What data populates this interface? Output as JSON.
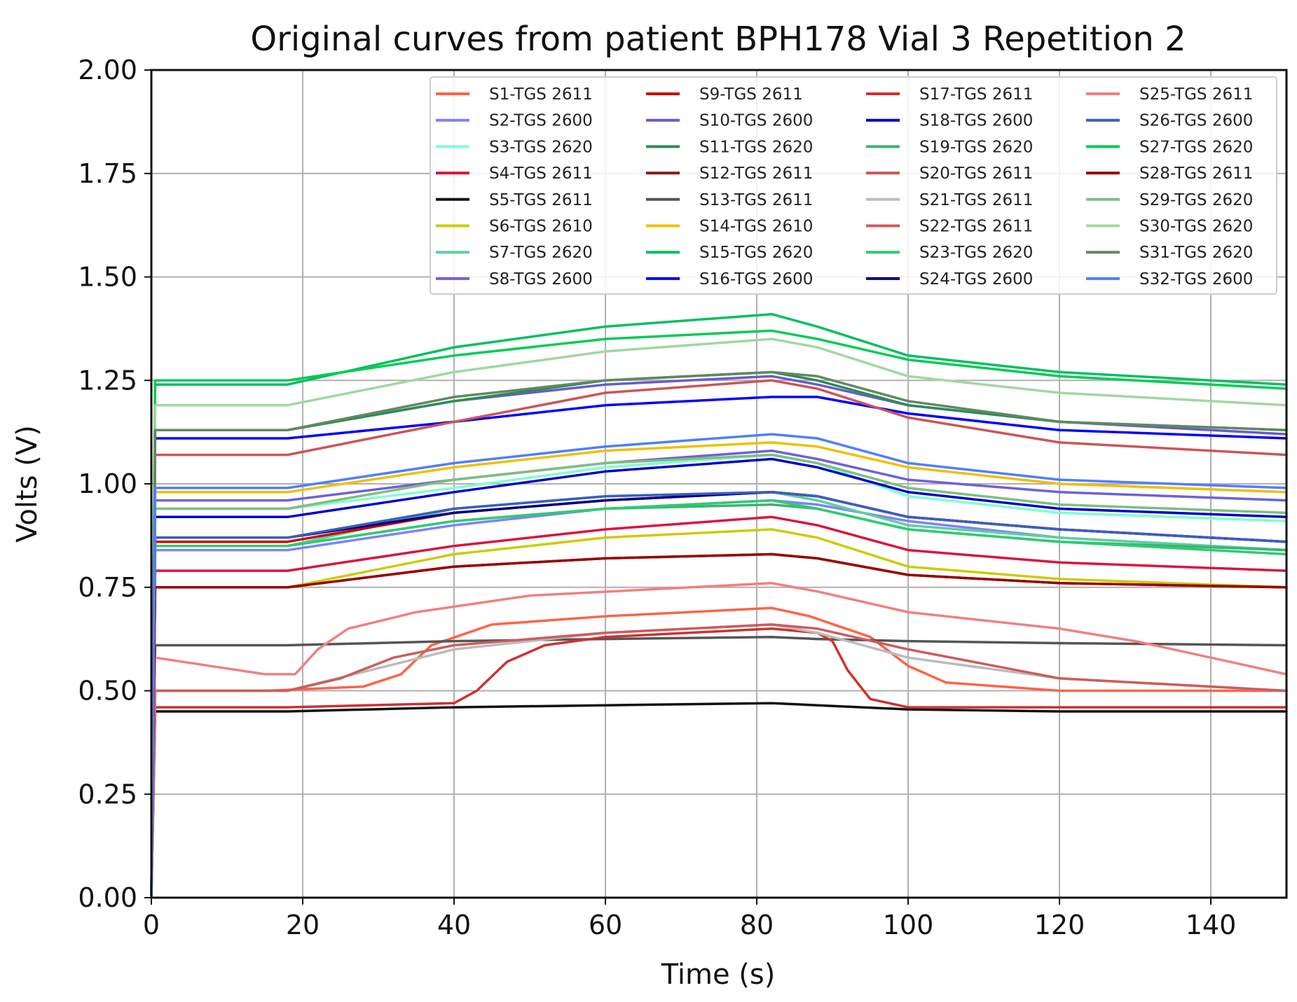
{
  "chart_data": {
    "type": "line",
    "title": "Original curves from patient BPH178 Vial 3 Repetition 2",
    "xlabel": "Time (s)",
    "ylabel": "Volts (V)",
    "xlim": [
      0,
      150
    ],
    "ylim": [
      0,
      2
    ],
    "grid": true,
    "legend_position": "top-right",
    "xticks": [
      0,
      20,
      40,
      60,
      80,
      100,
      120,
      140
    ],
    "xtick_labels": [
      "0",
      "20",
      "40",
      "60",
      "80",
      "100",
      "120",
      "140"
    ],
    "yticks": [
      0,
      0.25,
      0.5,
      0.75,
      1.0,
      1.25,
      1.5,
      1.75,
      2.0
    ],
    "ytick_labels": [
      "0.00",
      "0.25",
      "0.50",
      "0.75",
      "1.00",
      "1.25",
      "1.50",
      "1.75",
      "2.00"
    ],
    "series": [
      {
        "name": "S1-TGS 2611",
        "color": "#ff6347",
        "x": [
          0.5,
          15,
          28,
          33,
          37,
          45,
          60,
          82,
          87,
          95,
          100,
          105,
          120,
          150
        ],
        "y": [
          0.5,
          0.5,
          0.51,
          0.54,
          0.61,
          0.66,
          0.68,
          0.7,
          0.68,
          0.63,
          0.56,
          0.52,
          0.5,
          0.5
        ]
      },
      {
        "name": "S2-TGS 2600",
        "color": "#8080ff",
        "x": [
          0.5,
          18,
          40,
          60,
          82,
          88,
          100,
          120,
          150
        ],
        "y": [
          0.84,
          0.84,
          0.9,
          0.94,
          0.96,
          0.95,
          0.91,
          0.87,
          0.84
        ]
      },
      {
        "name": "S3-TGS 2620",
        "color": "#7fffd4",
        "x": [
          0.5,
          18,
          40,
          60,
          82,
          88,
          100,
          120,
          150
        ],
        "y": [
          0.94,
          0.94,
          0.99,
          1.04,
          1.07,
          1.05,
          0.97,
          0.93,
          0.91
        ]
      },
      {
        "name": "S4-TGS 2611",
        "color": "#dc143c",
        "x": [
          0.5,
          18,
          40,
          60,
          82,
          88,
          100,
          120,
          150
        ],
        "y": [
          0.79,
          0.79,
          0.85,
          0.89,
          0.92,
          0.9,
          0.84,
          0.81,
          0.79
        ]
      },
      {
        "name": "S5-TGS 2611",
        "color": "#111111",
        "x": [
          0.5,
          18,
          40,
          60,
          82,
          88,
          100,
          120,
          150
        ],
        "y": [
          0.45,
          0.45,
          0.46,
          0.465,
          0.47,
          0.465,
          0.455,
          0.45,
          0.45
        ]
      },
      {
        "name": "S6-TGS 2610",
        "color": "#cccc00",
        "x": [
          0.5,
          18,
          40,
          60,
          82,
          88,
          100,
          120,
          150
        ],
        "y": [
          0.75,
          0.75,
          0.83,
          0.87,
          0.89,
          0.87,
          0.8,
          0.77,
          0.75
        ]
      },
      {
        "name": "S7-TGS 2620",
        "color": "#5fcfa0",
        "x": [
          0.5,
          18,
          40,
          60,
          82,
          88,
          100,
          120,
          150
        ],
        "y": [
          0.85,
          0.85,
          0.94,
          0.97,
          0.98,
          0.96,
          0.9,
          0.87,
          0.84
        ]
      },
      {
        "name": "S8-TGS 2600",
        "color": "#7060d8",
        "x": [
          0.5,
          18,
          40,
          60,
          82,
          88,
          100,
          120,
          150
        ],
        "y": [
          0.96,
          0.96,
          1.01,
          1.05,
          1.08,
          1.06,
          1.01,
          0.98,
          0.96
        ]
      },
      {
        "name": "S9-TGS 2611",
        "color": "#cc0000",
        "x": [
          0.5,
          18,
          40,
          60,
          82,
          88,
          100,
          120,
          150
        ],
        "y": [
          0.86,
          0.86,
          0.93,
          0.96,
          0.98,
          0.97,
          0.92,
          0.89,
          0.86
        ]
      },
      {
        "name": "S10-TGS 2600",
        "color": "#6a5acd",
        "x": [
          0.5,
          18,
          40,
          60,
          82,
          88,
          100,
          120,
          150
        ],
        "y": [
          1.13,
          1.13,
          1.2,
          1.24,
          1.26,
          1.24,
          1.19,
          1.15,
          1.12
        ]
      },
      {
        "name": "S11-TGS 2620",
        "color": "#2e8b57",
        "x": [
          0.5,
          18,
          40,
          60,
          82,
          88,
          100,
          120,
          150
        ],
        "y": [
          1.13,
          1.13,
          1.2,
          1.25,
          1.27,
          1.25,
          1.19,
          1.15,
          1.13
        ]
      },
      {
        "name": "S12-TGS 2611",
        "color": "#8b1a1a",
        "x": [
          0.5,
          18,
          40,
          60,
          82,
          88,
          100,
          120,
          150
        ],
        "y": [
          0.75,
          0.75,
          0.8,
          0.82,
          0.83,
          0.82,
          0.78,
          0.76,
          0.75
        ]
      },
      {
        "name": "S13-TGS 2611",
        "color": "#555555",
        "x": [
          0.5,
          18,
          40,
          60,
          82,
          88,
          100,
          120,
          150
        ],
        "y": [
          0.61,
          0.61,
          0.62,
          0.625,
          0.63,
          0.625,
          0.62,
          0.615,
          0.61
        ]
      },
      {
        "name": "S14-TGS 2610",
        "color": "#f0c000",
        "x": [
          0.5,
          18,
          40,
          60,
          82,
          88,
          100,
          120,
          150
        ],
        "y": [
          0.98,
          0.98,
          1.04,
          1.08,
          1.1,
          1.09,
          1.04,
          1.0,
          0.98
        ]
      },
      {
        "name": "S15-TGS 2620",
        "color": "#00c060",
        "x": [
          0.5,
          18,
          40,
          60,
          82,
          88,
          100,
          120,
          150
        ],
        "y": [
          1.24,
          1.24,
          1.33,
          1.38,
          1.41,
          1.38,
          1.31,
          1.27,
          1.24
        ]
      },
      {
        "name": "S16-TGS 2600",
        "color": "#0000ff",
        "x": [
          0.5,
          18,
          40,
          60,
          82,
          88,
          100,
          120,
          150
        ],
        "y": [
          1.11,
          1.11,
          1.15,
          1.19,
          1.21,
          1.21,
          1.17,
          1.13,
          1.11
        ]
      },
      {
        "name": "S17-TGS 2611",
        "color": "#d03030",
        "x": [
          0.5,
          18,
          40,
          43,
          47,
          52,
          60,
          82,
          88,
          90,
          92,
          95,
          100,
          150
        ],
        "y": [
          0.46,
          0.46,
          0.47,
          0.5,
          0.57,
          0.61,
          0.63,
          0.65,
          0.64,
          0.62,
          0.55,
          0.48,
          0.46,
          0.46
        ]
      },
      {
        "name": "S18-TGS 2600",
        "color": "#0000cc",
        "x": [
          0.5,
          18,
          40,
          60,
          82,
          88,
          100,
          120,
          150
        ],
        "y": [
          0.92,
          0.92,
          0.98,
          1.03,
          1.06,
          1.04,
          0.98,
          0.94,
          0.92
        ]
      },
      {
        "name": "S19-TGS 2620",
        "color": "#3cb371",
        "x": [
          0.5,
          18,
          40,
          60,
          82,
          88,
          100,
          120,
          150
        ],
        "y": [
          0.85,
          0.85,
          0.91,
          0.94,
          0.95,
          0.94,
          0.89,
          0.86,
          0.84
        ]
      },
      {
        "name": "S20-TGS 2611",
        "color": "#cd5555",
        "x": [
          0.5,
          18,
          40,
          60,
          82,
          88,
          100,
          120,
          150
        ],
        "y": [
          1.07,
          1.07,
          1.15,
          1.22,
          1.25,
          1.23,
          1.16,
          1.1,
          1.07
        ]
      },
      {
        "name": "S21-TGS 2611",
        "color": "#bbbbbb",
        "x": [
          0.5,
          18,
          40,
          60,
          82,
          88,
          100,
          120,
          150
        ],
        "y": [
          0.5,
          0.5,
          0.6,
          0.64,
          0.66,
          0.64,
          0.58,
          0.53,
          0.5
        ]
      },
      {
        "name": "S22-TGS 2611",
        "color": "#cd5c5c",
        "x": [
          0.5,
          18,
          25,
          32,
          40,
          60,
          82,
          88,
          100,
          120,
          150
        ],
        "y": [
          0.5,
          0.5,
          0.53,
          0.58,
          0.61,
          0.64,
          0.66,
          0.65,
          0.6,
          0.53,
          0.5
        ]
      },
      {
        "name": "S23-TGS 2620",
        "color": "#2ecc71",
        "x": [
          0.5,
          18,
          40,
          60,
          82,
          88,
          100,
          120,
          150
        ],
        "y": [
          0.85,
          0.85,
          0.91,
          0.94,
          0.96,
          0.94,
          0.89,
          0.86,
          0.83
        ]
      },
      {
        "name": "S24-TGS 2600",
        "color": "#000080",
        "x": [
          0.5,
          18,
          40,
          60,
          82,
          88,
          100,
          120,
          150
        ],
        "y": [
          0.87,
          0.87,
          0.93,
          0.96,
          0.98,
          0.97,
          0.92,
          0.89,
          0.86
        ]
      },
      {
        "name": "S25-TGS 2611",
        "color": "#f08080",
        "x": [
          0.5,
          15,
          19,
          22,
          26,
          35,
          50,
          82,
          88,
          100,
          120,
          130,
          140,
          150
        ],
        "y": [
          0.58,
          0.54,
          0.54,
          0.6,
          0.65,
          0.69,
          0.73,
          0.76,
          0.74,
          0.69,
          0.65,
          0.62,
          0.58,
          0.54
        ]
      },
      {
        "name": "S26-TGS 2600",
        "color": "#3a5fbf",
        "x": [
          0.5,
          18,
          40,
          60,
          82,
          88,
          100,
          120,
          150
        ],
        "y": [
          0.87,
          0.87,
          0.94,
          0.97,
          0.98,
          0.97,
          0.92,
          0.89,
          0.86
        ]
      },
      {
        "name": "S27-TGS 2620",
        "color": "#00cc55",
        "x": [
          0.5,
          18,
          40,
          60,
          82,
          88,
          100,
          120,
          150
        ],
        "y": [
          1.25,
          1.25,
          1.31,
          1.35,
          1.37,
          1.35,
          1.3,
          1.26,
          1.23
        ]
      },
      {
        "name": "S28-TGS 2611",
        "color": "#990000",
        "x": [
          0.5,
          18,
          40,
          60,
          82,
          88,
          100,
          120,
          150
        ],
        "y": [
          0.75,
          0.75,
          0.8,
          0.82,
          0.83,
          0.82,
          0.78,
          0.76,
          0.75
        ]
      },
      {
        "name": "S29-TGS 2620",
        "color": "#7fbf7f",
        "x": [
          0.5,
          18,
          40,
          60,
          82,
          88,
          100,
          120,
          150
        ],
        "y": [
          0.94,
          0.94,
          1.01,
          1.05,
          1.07,
          1.05,
          0.99,
          0.95,
          0.93
        ]
      },
      {
        "name": "S30-TGS 2620",
        "color": "#a0d8a0",
        "x": [
          0.5,
          18,
          40,
          60,
          82,
          88,
          100,
          120,
          150
        ],
        "y": [
          1.19,
          1.19,
          1.27,
          1.32,
          1.35,
          1.33,
          1.26,
          1.22,
          1.19
        ]
      },
      {
        "name": "S31-TGS 2620",
        "color": "#5f8a5f",
        "x": [
          0.5,
          18,
          40,
          60,
          82,
          88,
          100,
          120,
          150
        ],
        "y": [
          1.13,
          1.13,
          1.21,
          1.25,
          1.27,
          1.26,
          1.2,
          1.15,
          1.13
        ]
      },
      {
        "name": "S32-TGS 2600",
        "color": "#4f7fff",
        "x": [
          0.5,
          18,
          40,
          60,
          82,
          88,
          100,
          120,
          150
        ],
        "y": [
          0.99,
          0.99,
          1.05,
          1.09,
          1.12,
          1.11,
          1.05,
          1.01,
          0.99
        ]
      }
    ]
  }
}
